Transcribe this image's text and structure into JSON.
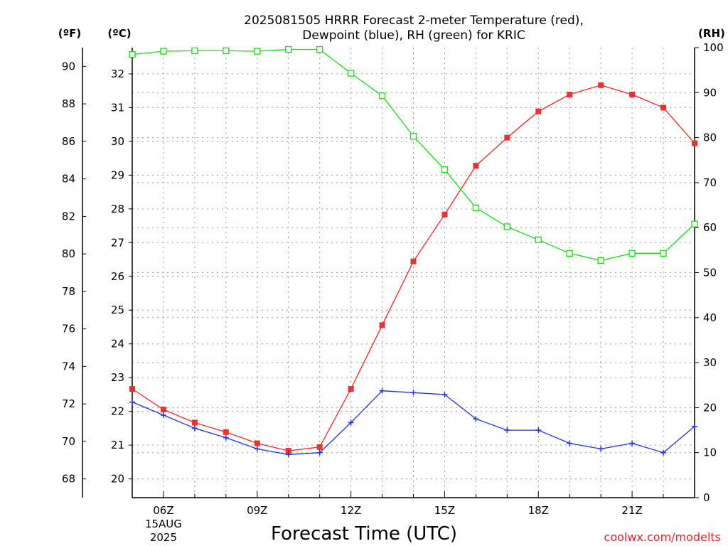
{
  "chart_data": {
    "type": "line",
    "title_line1": "2025081505 HRRR Forecast 2-meter Temperature (red),",
    "title_line2": "Dewpoint (blue), RH (green) for KRIC",
    "xlabel": "Forecast Time (UTC)",
    "credit": "coolwx.com/modelts",
    "unit_labels": {
      "fahrenheit": "(ºF)",
      "celsius": "(ºC)",
      "rh": "(RH)"
    },
    "x_range_hours": [
      5,
      23
    ],
    "x_ticks": [
      {
        "hour": 6,
        "label": "06Z"
      },
      {
        "hour": 9,
        "label": "09Z"
      },
      {
        "hour": 12,
        "label": "12Z"
      },
      {
        "hour": 15,
        "label": "15Z"
      },
      {
        "hour": 18,
        "label": "18Z"
      },
      {
        "hour": 21,
        "label": "21Z"
      }
    ],
    "date_label": [
      "15AUG",
      "2025"
    ],
    "fahrenheit_axis": {
      "range": [
        67,
        91
      ],
      "ticks": [
        68,
        70,
        72,
        74,
        76,
        78,
        80,
        82,
        84,
        86,
        88,
        90
      ]
    },
    "celsius_axis": {
      "range": [
        19.444,
        32.778
      ],
      "ticks": [
        20,
        21,
        22,
        23,
        24,
        25,
        26,
        27,
        28,
        29,
        30,
        31,
        32
      ]
    },
    "rh_axis": {
      "range": [
        0,
        100
      ],
      "ticks": [
        0,
        10,
        20,
        30,
        40,
        50,
        60,
        70,
        80,
        90,
        100
      ]
    },
    "colors": {
      "temperature": "#ff2020",
      "dewpoint": "#2030ff",
      "rh": "#10e010",
      "temp_marker": "#ee3030"
    },
    "hours": [
      5,
      6,
      7,
      8,
      9,
      10,
      11,
      12,
      13,
      14,
      15,
      16,
      17,
      18,
      19,
      20,
      21,
      22,
      23
    ],
    "series": [
      {
        "name": "Temperature",
        "unit": "F",
        "marker": "filled-square",
        "values": [
          72.8,
          71.7,
          71.0,
          70.5,
          69.9,
          69.5,
          69.7,
          72.8,
          76.2,
          79.6,
          82.1,
          84.7,
          86.2,
          87.6,
          88.5,
          89.0,
          88.5,
          87.8,
          85.9
        ]
      },
      {
        "name": "Dewpoint",
        "unit": "F",
        "marker": "plus",
        "values": [
          72.1,
          71.4,
          70.7,
          70.2,
          69.6,
          69.3,
          69.4,
          71.0,
          72.7,
          72.6,
          72.5,
          71.2,
          70.6,
          70.6,
          69.9,
          69.6,
          69.9,
          69.4,
          70.8
        ]
      },
      {
        "name": "RH",
        "unit": "%",
        "marker": "open-square",
        "values": [
          98.5,
          99.2,
          99.3,
          99.3,
          99.2,
          99.6,
          99.6,
          94.3,
          89.3,
          80.3,
          72.9,
          64.4,
          60.2,
          57.3,
          54.3,
          52.7,
          54.3,
          54.3,
          60.8
        ]
      }
    ]
  }
}
